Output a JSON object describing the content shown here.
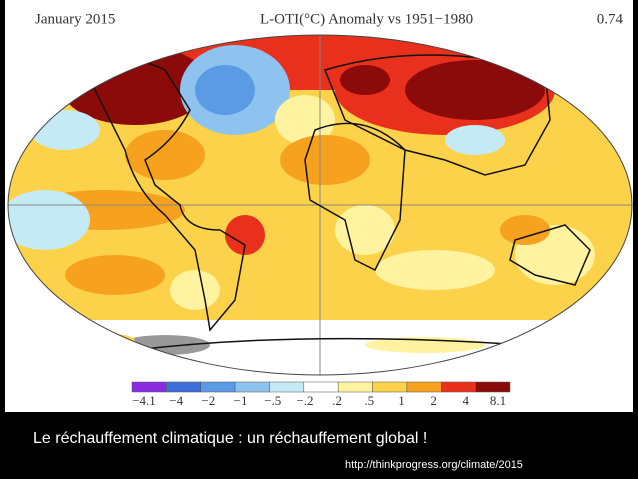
{
  "header": {
    "date": "January 2015",
    "title": "L-OTI(°C) Anomaly vs 1951−1980",
    "global_mean": "0.74"
  },
  "legend": {
    "labels": [
      "−4.1",
      "−4",
      "−2",
      "−1",
      "−.5",
      "−.2",
      ".2",
      ".5",
      "1",
      "2",
      "4",
      "8.1"
    ],
    "colors": [
      "#8a2be2",
      "#3f6fd8",
      "#5b9be6",
      "#8ec3f0",
      "#c4ebf5",
      "#ffffff",
      "#fff3a0",
      "#fcd24a",
      "#f7a21f",
      "#e8301c",
      "#8b0a0a"
    ]
  },
  "caption": {
    "text": "Le réchauffement climatique : un réchauffement global !",
    "source": "http://thinkprogress.org/climate/2015"
  }
}
